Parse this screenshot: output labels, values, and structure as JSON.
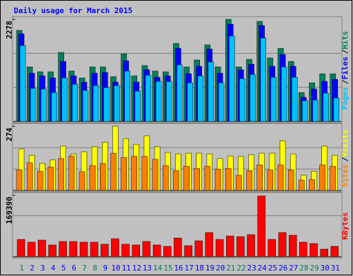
{
  "chart_data": [
    {
      "type": "bar",
      "title": "Daily usage for March 2015",
      "legend_separator": "/",
      "ylim": [
        0,
        2278
      ],
      "yticks": [
        2278
      ],
      "series": [
        {
          "name": "Pages",
          "color": "#00c0ff",
          "values": [
            1693,
            739,
            723,
            646,
            970,
            831,
            693,
            800,
            754,
            800,
            1124,
            677,
            1031,
            893,
            893,
            1262,
            862,
            1016,
            1324,
            862,
            1908,
            954,
            1047,
            1862,
            985,
            1216,
            985,
            462,
            477,
            631,
            523
          ]
        },
        {
          "name": "Files",
          "color": "#0000ff",
          "values": [
            1955,
            1077,
            1016,
            970,
            1339,
            1016,
            877,
            1077,
            1093,
            877,
            1354,
            877,
            1154,
            985,
            1016,
            1631,
            1062,
            1231,
            1616,
            1077,
            2170,
            1154,
            1277,
            2139,
            1231,
            1493,
            1231,
            539,
            723,
            893,
            939
          ]
        },
        {
          "name": "Hits",
          "color": "#00805c",
          "values": [
            2032,
            1216,
            1108,
            1108,
            1539,
            1124,
            970,
            1216,
            1216,
            1000,
            1508,
            1016,
            1247,
            1124,
            1108,
            1739,
            1216,
            1370,
            1709,
            1216,
            2278,
            1216,
            1385,
            2232,
            1416,
            1631,
            1339,
            646,
            862,
            1062,
            1062
          ]
        }
      ]
    },
    {
      "type": "bar",
      "ylim": [
        0,
        274
      ],
      "yticks": [
        274
      ],
      "series": [
        {
          "name": "Sites",
          "color": "#ff8000",
          "values": [
            88,
            118,
            82,
            100,
            136,
            147,
            80,
            106,
            115,
            159,
            141,
            145,
            145,
            133,
            106,
            85,
            103,
            94,
            103,
            91,
            94,
            65,
            85,
            109,
            88,
            109,
            88,
            44,
            47,
            109,
            103
          ]
        },
        {
          "name": "Visits",
          "color": "#ffff00",
          "values": [
            177,
            150,
            115,
            130,
            189,
            156,
            165,
            186,
            206,
            274,
            221,
            197,
            233,
            186,
            162,
            156,
            159,
            159,
            156,
            136,
            147,
            145,
            153,
            159,
            159,
            212,
            156,
            65,
            82,
            189,
            150
          ]
        }
      ]
    },
    {
      "type": "bar",
      "ylim": [
        0,
        169390
      ],
      "yticks": [
        169390
      ],
      "categories": [
        "1",
        "2",
        "3",
        "4",
        "5",
        "6",
        "7",
        "8",
        "9",
        "10",
        "11",
        "12",
        "13",
        "14",
        "15",
        "16",
        "17",
        "18",
        "19",
        "20",
        "21",
        "22",
        "23",
        "24",
        "25",
        "26",
        "27",
        "28",
        "29",
        "30",
        "31"
      ],
      "category_colors": [
        "#00805c",
        "#0000ff",
        "#0000ff",
        "#0000ff",
        "#0000ff",
        "#0000ff",
        "#00805c",
        "#00805c",
        "#0000ff",
        "#0000ff",
        "#0000ff",
        "#0000ff",
        "#0000ff",
        "#00805c",
        "#00805c",
        "#0000ff",
        "#0000ff",
        "#0000ff",
        "#0000ff",
        "#0000ff",
        "#00805c",
        "#00805c",
        "#0000ff",
        "#0000ff",
        "#0000ff",
        "#0000ff",
        "#0000ff",
        "#00805c",
        "#00805c",
        "#0000ff",
        "#0000ff"
      ],
      "series": [
        {
          "name": "KBytes",
          "color": "#ff0000",
          "values": [
            47600,
            40000,
            45700,
            32300,
            41900,
            41900,
            40000,
            40000,
            34300,
            49500,
            34300,
            32300,
            41900,
            32300,
            28500,
            51400,
            30400,
            43800,
            66600,
            47600,
            57100,
            55200,
            60900,
            167500,
            47600,
            66600,
            59000,
            40000,
            36200,
            20900,
            28500
          ]
        }
      ]
    }
  ]
}
